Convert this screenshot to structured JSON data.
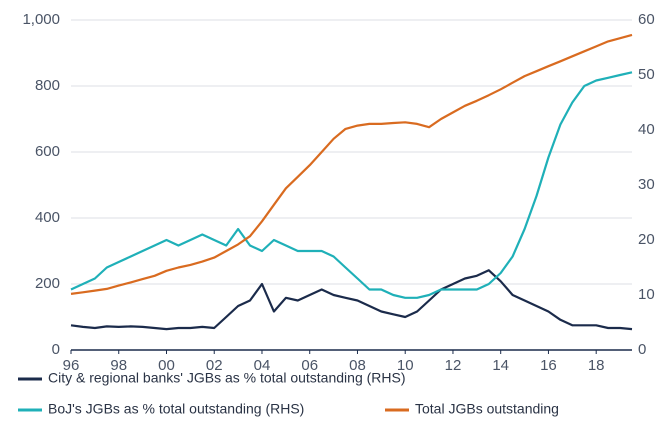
{
  "chart_data": {
    "type": "line",
    "x": [
      1996,
      1996.5,
      1997,
      1997.5,
      1998,
      1998.5,
      1999,
      1999.5,
      2000,
      2000.5,
      2001,
      2001.5,
      2002,
      2002.5,
      2003,
      2003.5,
      2004,
      2004.5,
      2005,
      2005.5,
      2006,
      2006.5,
      2007,
      2007.5,
      2008,
      2008.5,
      2009,
      2009.5,
      2010,
      2010.5,
      2011,
      2011.5,
      2012,
      2012.5,
      2013,
      2013.5,
      2014,
      2014.5,
      2015,
      2015.5,
      2016,
      2016.5,
      2017,
      2017.5,
      2018,
      2018.5,
      2019,
      2019.5
    ],
    "xlim": [
      1996,
      2019.5
    ],
    "xticks": [
      {
        "value": 1996,
        "label": "96"
      },
      {
        "value": 1998,
        "label": "98"
      },
      {
        "value": 2000,
        "label": "00"
      },
      {
        "value": 2002,
        "label": "02"
      },
      {
        "value": 2004,
        "label": "04"
      },
      {
        "value": 2006,
        "label": "06"
      },
      {
        "value": 2008,
        "label": "08"
      },
      {
        "value": 2010,
        "label": "10"
      },
      {
        "value": 2012,
        "label": "12"
      },
      {
        "value": 2014,
        "label": "14"
      },
      {
        "value": 2016,
        "label": "16"
      },
      {
        "value": 2018,
        "label": "18"
      }
    ],
    "ylim": [
      0,
      1000
    ],
    "yticks": [
      0,
      200,
      400,
      600,
      800,
      {
        "value": 1000,
        "label": "1,000"
      }
    ],
    "y2lim": [
      0,
      60
    ],
    "y2ticks": [
      0,
      10,
      20,
      30,
      40,
      50,
      60
    ],
    "grid": true,
    "legend": "bottom",
    "series": [
      {
        "name": "City & regional banks' JGBs as % total outstanding (RHS)",
        "color": "#1b2b4b",
        "axis": "y2",
        "values": [
          4.5,
          4.2,
          4,
          4.3,
          4.2,
          4.3,
          4.2,
          4,
          3.8,
          4,
          4,
          4.2,
          4,
          6,
          8,
          9,
          12,
          7,
          9.5,
          9,
          10,
          11,
          10,
          9.5,
          9,
          8,
          7,
          6.5,
          6,
          7,
          9,
          11,
          12,
          13,
          13.5,
          14.5,
          12.5,
          10,
          9,
          8,
          7,
          5.5,
          4.5,
          4.5,
          4.5,
          4,
          4,
          3.8
        ]
      },
      {
        "name": "BoJ's JGBs as % total outstanding (RHS)",
        "color": "#1fb0b8",
        "axis": "y2",
        "values": [
          11,
          12,
          13,
          15,
          16,
          17,
          18,
          19,
          20,
          19,
          20,
          21,
          20,
          19,
          22,
          19,
          18,
          20,
          19,
          18,
          18,
          18,
          17,
          15,
          13,
          11,
          11,
          10,
          9.5,
          9.5,
          10,
          11,
          11,
          11,
          11,
          12,
          14,
          17,
          22,
          28,
          35,
          41,
          45,
          48,
          49,
          49.5,
          50,
          50.5
        ]
      },
      {
        "name": "Total JGBs outstanding",
        "color": "#d96b20",
        "values": [
          170,
          175,
          180,
          185,
          195,
          205,
          215,
          225,
          240,
          250,
          258,
          268,
          280,
          300,
          320,
          345,
          390,
          440,
          490,
          525,
          560,
          600,
          640,
          670,
          680,
          685,
          685,
          688,
          690,
          685,
          675,
          700,
          720,
          740,
          755,
          772,
          790,
          810,
          830,
          845,
          860,
          875,
          890,
          905,
          920,
          935,
          945,
          955
        ]
      }
    ]
  }
}
